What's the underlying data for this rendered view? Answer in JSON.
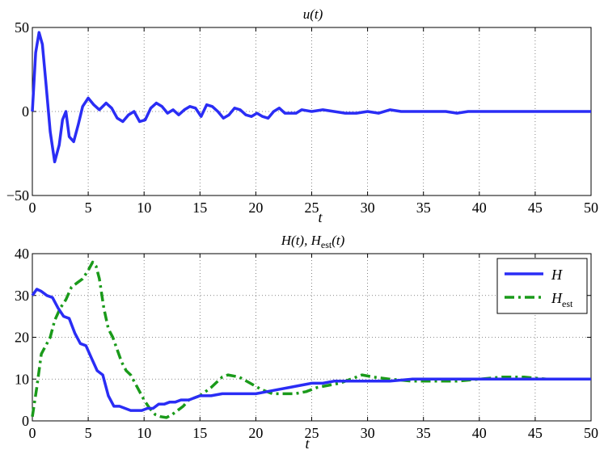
{
  "colors": {
    "H": "#2a2df5",
    "H_est": "#1a9a1a",
    "u": "#2a2df5"
  },
  "chart_data": [
    {
      "type": "line",
      "title": "u(t)",
      "xlabel": "t",
      "ylabel": "",
      "xlim": [
        0,
        50
      ],
      "ylim": [
        -50,
        50
      ],
      "xticks": [
        "0",
        "5",
        "10",
        "15",
        "20",
        "25",
        "30",
        "35",
        "40",
        "45",
        "50"
      ],
      "yticks": [
        "−50",
        "0",
        "50"
      ],
      "grid": true,
      "series": [
        {
          "x": [
            0,
            0.3,
            0.6,
            0.9,
            1.2,
            1.6,
            2.0,
            2.4,
            2.7,
            3.0,
            3.3,
            3.7,
            4.1,
            4.5,
            5.0,
            5.5,
            6.0,
            6.6,
            7.1,
            7.6,
            8.1,
            8.6,
            9.1,
            9.6,
            10.1,
            10.6,
            11.1,
            11.6,
            12.1,
            12.6,
            13.1,
            13.6,
            14.1,
            14.6,
            15.1,
            15.6,
            16.1,
            16.6,
            17.1,
            17.6,
            18.1,
            18.6,
            19.1,
            19.6,
            20.1,
            20.6,
            21.1,
            21.6,
            22.1,
            22.6,
            23.1,
            23.6,
            24.1,
            25,
            26,
            27,
            28,
            29,
            30,
            31,
            32,
            33,
            34,
            35,
            36,
            37,
            38,
            39,
            40,
            42,
            44,
            46,
            48,
            50
          ],
          "y": [
            0,
            35,
            47,
            40,
            18,
            -12,
            -30,
            -20,
            -5,
            0,
            -15,
            -18,
            -8,
            3,
            8,
            4,
            1,
            5,
            2,
            -4,
            -6,
            -2,
            0,
            -6,
            -5,
            2,
            5,
            3,
            -1,
            1,
            -2,
            1,
            3,
            2,
            -3,
            4,
            3,
            0,
            -4,
            -2,
            2,
            1,
            -2,
            -3,
            -1,
            -3,
            -4,
            0,
            2,
            -1,
            -1,
            -1,
            1,
            0,
            1,
            0,
            -1,
            -1,
            0,
            -1,
            1,
            0,
            0,
            0,
            0,
            0,
            -1,
            0,
            0,
            0,
            0,
            0,
            0,
            0
          ]
        }
      ]
    },
    {
      "type": "line",
      "title": "H(t), H_est(t)",
      "xlabel": "t",
      "ylabel": "",
      "xlim": [
        0,
        50
      ],
      "ylim": [
        0,
        40
      ],
      "xticks": [
        "0",
        "5",
        "10",
        "15",
        "20",
        "25",
        "30",
        "35",
        "40",
        "45",
        "50"
      ],
      "yticks": [
        "0",
        "10",
        "20",
        "30",
        "40"
      ],
      "grid": true,
      "legend": {
        "position": "top-right",
        "entries": [
          "H",
          "H_est"
        ]
      },
      "series": [
        {
          "name": "H",
          "x": [
            0,
            0.4,
            0.8,
            1.3,
            1.8,
            2.3,
            2.8,
            3.3,
            3.8,
            4.3,
            4.8,
            5.3,
            5.8,
            6.3,
            6.8,
            7.3,
            7.8,
            8.3,
            8.8,
            9.3,
            9.8,
            10.3,
            10.8,
            11.3,
            11.8,
            12.3,
            12.8,
            13.3,
            14,
            15,
            16,
            17,
            18,
            19,
            20,
            21,
            22,
            23,
            24,
            25,
            26,
            27,
            28,
            30,
            32,
            34,
            36,
            38,
            40,
            42,
            44,
            46,
            48,
            50
          ],
          "y": [
            30,
            31.5,
            31,
            30,
            29.5,
            27,
            25,
            24.5,
            21,
            18.5,
            18,
            15,
            12,
            11,
            6,
            3.5,
            3.5,
            3,
            2.5,
            2.5,
            2.5,
            3,
            3,
            4,
            4,
            4.5,
            4.5,
            5,
            5,
            6,
            6,
            6.5,
            6.5,
            6.5,
            6.5,
            7,
            7.5,
            8,
            8.5,
            9,
            9,
            9.5,
            9.5,
            9.5,
            9.5,
            10,
            10,
            10,
            10,
            10,
            10,
            10,
            10,
            10
          ]
        },
        {
          "name": "H_est",
          "x": [
            0,
            0.4,
            0.8,
            1.2,
            1.6,
            2.0,
            2.5,
            3.0,
            3.5,
            4.0,
            4.5,
            5.0,
            5.4,
            5.7,
            6.0,
            6.4,
            6.8,
            7.2,
            7.6,
            8.0,
            8.4,
            8.8,
            9.2,
            9.6,
            10.0,
            10.5,
            11.0,
            11.5,
            12.0,
            12.5,
            13.0,
            13.5,
            14,
            15,
            16,
            17,
            17.5,
            18.5,
            19.5,
            20.5,
            21.5,
            22.5,
            23.5,
            24.5,
            25.5,
            26.5,
            27.5,
            28.5,
            29.5,
            30.5,
            32,
            34,
            36,
            38,
            40,
            42,
            44,
            46,
            48,
            50
          ],
          "y": [
            1,
            8,
            16,
            18,
            20,
            24,
            27,
            29,
            32,
            33,
            34,
            36,
            38,
            37,
            34,
            27,
            22,
            20,
            17,
            14,
            12,
            11,
            9,
            7,
            5,
            3,
            1.5,
            1,
            0.8,
            1.5,
            2.5,
            3.5,
            5,
            6,
            8,
            10.5,
            11,
            10.5,
            9,
            7.5,
            6.5,
            6.5,
            6.5,
            7,
            8,
            8.5,
            9,
            10,
            11,
            10.5,
            10,
            9.5,
            9.5,
            9.5,
            10,
            10.5,
            10.5,
            10,
            10,
            10
          ]
        }
      ]
    }
  ]
}
